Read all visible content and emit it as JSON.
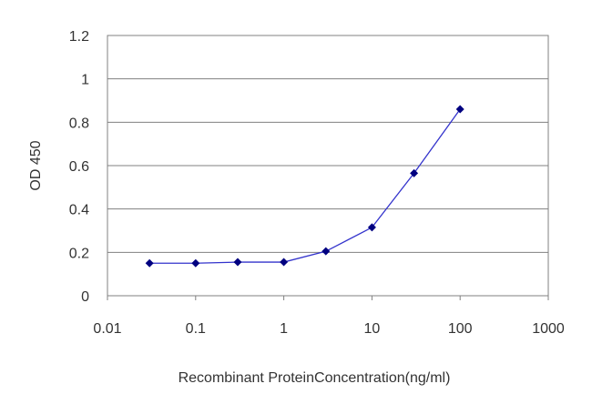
{
  "chart_data": {
    "type": "line",
    "title": "",
    "xlabel": "Recombinant ProteinConcentration(ng/ml)",
    "ylabel": "OD 450",
    "xscale": "log",
    "xlim": [
      0.01,
      1000
    ],
    "ylim": [
      0,
      1.2
    ],
    "x_ticks": [
      "0.01",
      "0.1",
      "1",
      "10",
      "100",
      "1000"
    ],
    "y_ticks": [
      "0",
      "0.2",
      "0.4",
      "0.6",
      "0.8",
      "1",
      "1.2"
    ],
    "grid": "horizontal",
    "series": [
      {
        "x": [
          0.03,
          0.1,
          0.3,
          1,
          3,
          10,
          30,
          100
        ],
        "y": [
          0.15,
          0.15,
          0.155,
          0.155,
          0.205,
          0.315,
          0.565,
          0.86
        ]
      }
    ],
    "colors": {
      "line": "#3333cc",
      "marker": "#000080",
      "grid": "#808080"
    }
  }
}
